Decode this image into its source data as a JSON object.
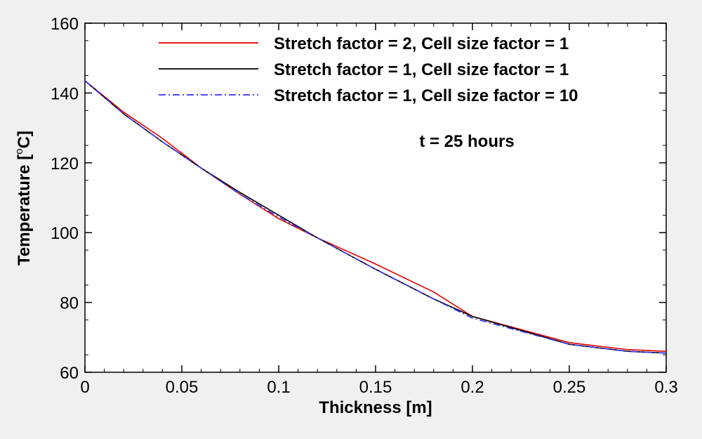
{
  "chart_data": {
    "type": "line",
    "xlabel": "Thickness [m]",
    "ylabel_prefix": "Temperature [",
    "ylabel_degree": "o",
    "ylabel_suffix": "C]",
    "xlim": [
      0,
      0.3
    ],
    "ylim": [
      60,
      160
    ],
    "xticks": [
      0,
      0.05,
      0.1,
      0.15,
      0.2,
      0.25,
      0.3
    ],
    "xtick_labels": [
      "0",
      "0.05",
      "0.1",
      "0.15",
      "0.2",
      "0.25",
      "0.3"
    ],
    "yticks": [
      60,
      80,
      100,
      120,
      140,
      160
    ],
    "ytick_labels": [
      "60",
      "80",
      "100",
      "120",
      "140",
      "160"
    ],
    "grid": false,
    "legend_position": "top-right",
    "annotation": "t = 25 hours",
    "series": [
      {
        "name": "Stretch factor = 2, Cell size factor = 1",
        "color": "#e00000",
        "dash": "solid",
        "x": [
          0,
          0.02,
          0.04,
          0.06,
          0.08,
          0.1,
          0.12,
          0.15,
          0.18,
          0.2,
          0.25,
          0.28,
          0.3
        ],
        "y": [
          143.5,
          134.5,
          127,
          118.5,
          111,
          104,
          98.5,
          91,
          83,
          76,
          68.5,
          66.5,
          66
        ]
      },
      {
        "name": "Stretch factor = 1, Cell size factor = 1",
        "color": "#000000",
        "dash": "solid",
        "x": [
          0,
          0.02,
          0.04,
          0.06,
          0.08,
          0.1,
          0.12,
          0.15,
          0.18,
          0.2,
          0.25,
          0.28,
          0.3
        ],
        "y": [
          143.5,
          134,
          126,
          118.5,
          111.5,
          105,
          98.5,
          89.5,
          81,
          76,
          68,
          66,
          65.5
        ]
      },
      {
        "name": "Stretch factor = 1, Cell size factor = 10",
        "color": "#3030ff",
        "dash": "dashdot",
        "x": [
          0,
          0.02,
          0.04,
          0.06,
          0.08,
          0.1,
          0.12,
          0.15,
          0.18,
          0.2,
          0.25,
          0.28,
          0.3
        ],
        "y": [
          143.5,
          134,
          126,
          118.5,
          111,
          104.5,
          98.5,
          89.5,
          81,
          75.5,
          68,
          66,
          65.5
        ]
      }
    ]
  }
}
